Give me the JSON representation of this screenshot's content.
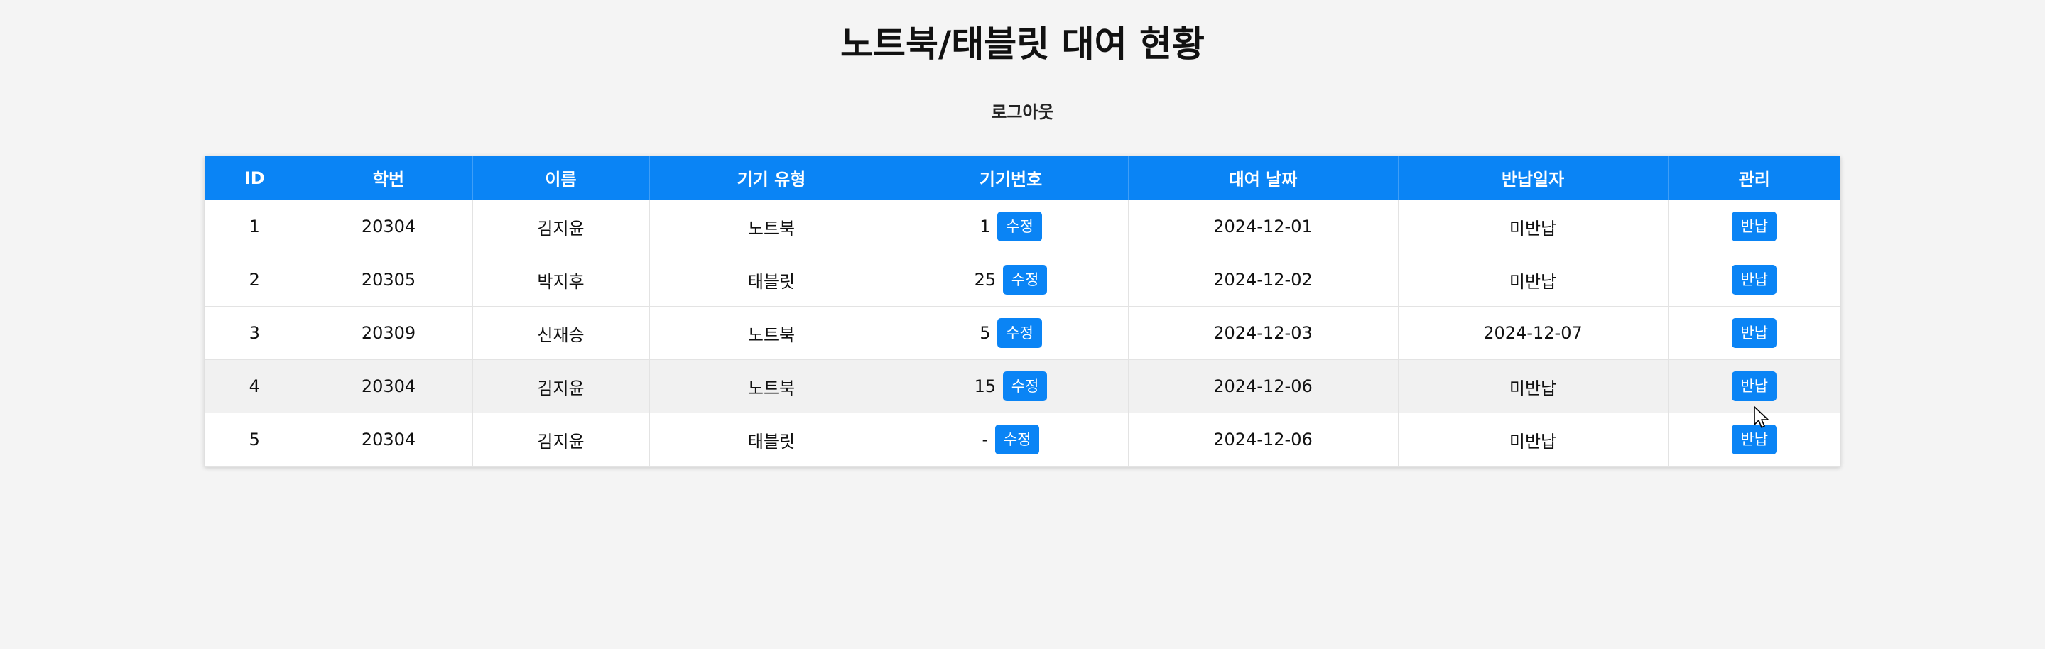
{
  "page": {
    "title": "노트북/태블릿 대여 현황",
    "logout_label": "로그아웃"
  },
  "table": {
    "headers": [
      "ID",
      "학번",
      "이름",
      "기기 유형",
      "기기번호",
      "대여 날짜",
      "반납일자",
      "관리"
    ],
    "rows": [
      {
        "id": "1",
        "student_no": "20304",
        "name": "김지윤",
        "device_type": "노트북",
        "device_no": "1",
        "edit_label": "수정",
        "rent_date": "2024-12-01",
        "return_date": "미반납",
        "action_label": "반납"
      },
      {
        "id": "2",
        "student_no": "20305",
        "name": "박지후",
        "device_type": "태블릿",
        "device_no": "25",
        "edit_label": "수정",
        "rent_date": "2024-12-02",
        "return_date": "미반납",
        "action_label": "반납"
      },
      {
        "id": "3",
        "student_no": "20309",
        "name": "신재승",
        "device_type": "노트북",
        "device_no": "5",
        "edit_label": "수정",
        "rent_date": "2024-12-03",
        "return_date": "2024-12-07",
        "action_label": "반납"
      },
      {
        "id": "4",
        "student_no": "20304",
        "name": "김지윤",
        "device_type": "노트북",
        "device_no": "15",
        "edit_label": "수정",
        "rent_date": "2024-12-06",
        "return_date": "미반납",
        "action_label": "반납"
      },
      {
        "id": "5",
        "student_no": "20304",
        "name": "김지윤",
        "device_type": "태블릿",
        "device_no": "-",
        "edit_label": "수정",
        "rent_date": "2024-12-06",
        "return_date": "미반납",
        "action_label": "반납"
      }
    ]
  },
  "colors": {
    "accent": "#0a84f5",
    "background": "#f4f4f4",
    "row_hover": "#f1f1f1"
  },
  "icons": {
    "cursor": "mouse-pointer-icon"
  }
}
